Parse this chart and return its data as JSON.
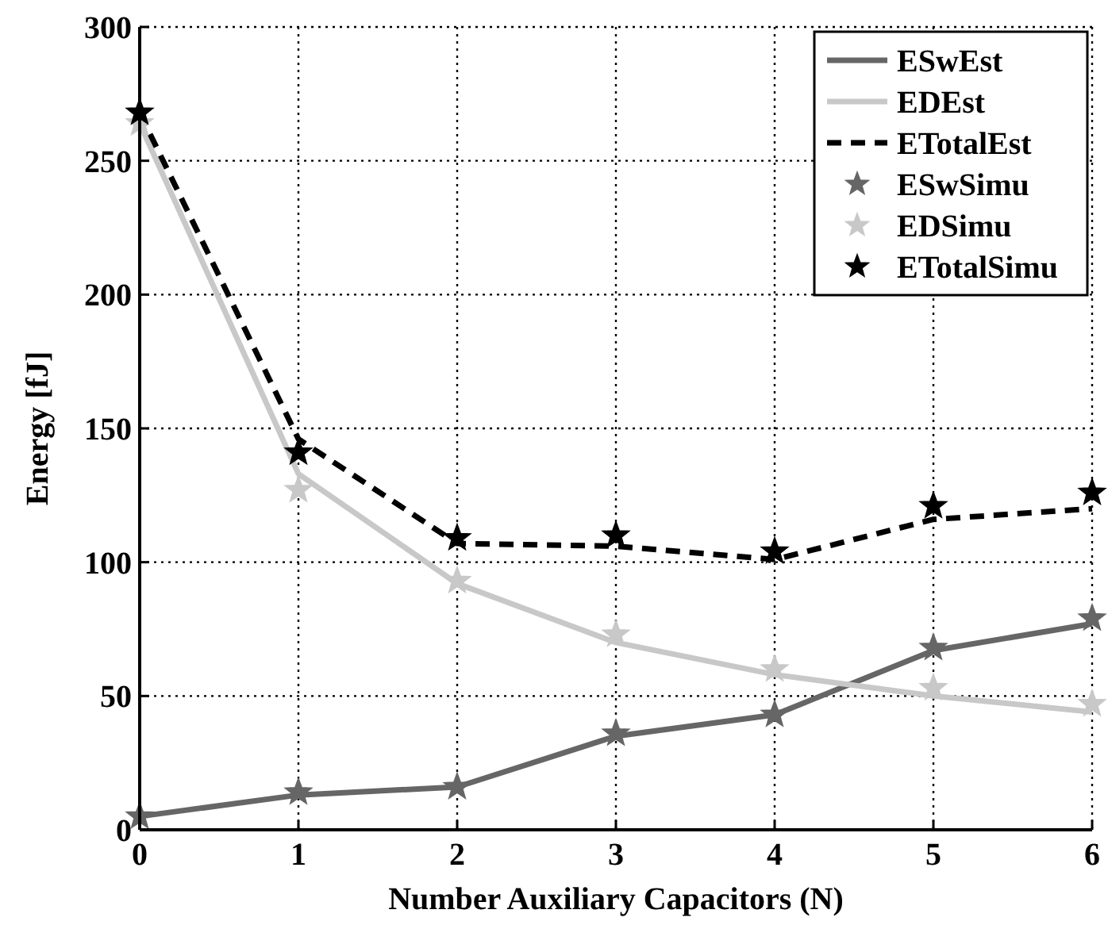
{
  "chart_data": {
    "type": "line",
    "xlabel": "Number Auxiliary Capacitors (N)",
    "ylabel": "Energy [fJ]",
    "x": [
      0,
      1,
      2,
      3,
      4,
      5,
      6
    ],
    "xlim": [
      0,
      6
    ],
    "xticks": [
      0,
      1,
      2,
      3,
      4,
      5,
      6
    ],
    "ylim": [
      0,
      300
    ],
    "yticks": [
      0,
      50,
      100,
      150,
      200,
      250,
      300
    ],
    "grid": true,
    "legend": "top right",
    "series": [
      {
        "name": "ESwEst",
        "color": "#666666",
        "marker": "none",
        "line_style": "solid",
        "values": [
          5,
          13,
          16,
          35,
          43,
          67,
          77
        ]
      },
      {
        "name": "EDEst",
        "color": "#c8c8c8",
        "marker": "none",
        "line_style": "solid",
        "values": [
          264,
          133,
          92,
          70,
          58,
          50,
          44
        ]
      },
      {
        "name": "ETotalEst",
        "color": "#000000",
        "marker": "none",
        "line_style": "dashed",
        "values": [
          268,
          146,
          107,
          106,
          101,
          116,
          120
        ]
      },
      {
        "name": "ESwSimu",
        "type": "scatter",
        "color": "#666666",
        "marker": "star",
        "values": [
          5,
          14,
          16,
          36,
          43,
          68,
          79
        ]
      },
      {
        "name": "EDSimu",
        "type": "scatter",
        "color": "#c8c8c8",
        "marker": "star",
        "values": [
          264,
          127,
          93,
          73,
          60,
          53,
          47
        ]
      },
      {
        "name": "ETotalSimu",
        "type": "scatter",
        "color": "#000000",
        "marker": "star",
        "values": [
          268,
          141,
          109,
          110,
          104,
          121,
          126
        ]
      }
    ]
  }
}
